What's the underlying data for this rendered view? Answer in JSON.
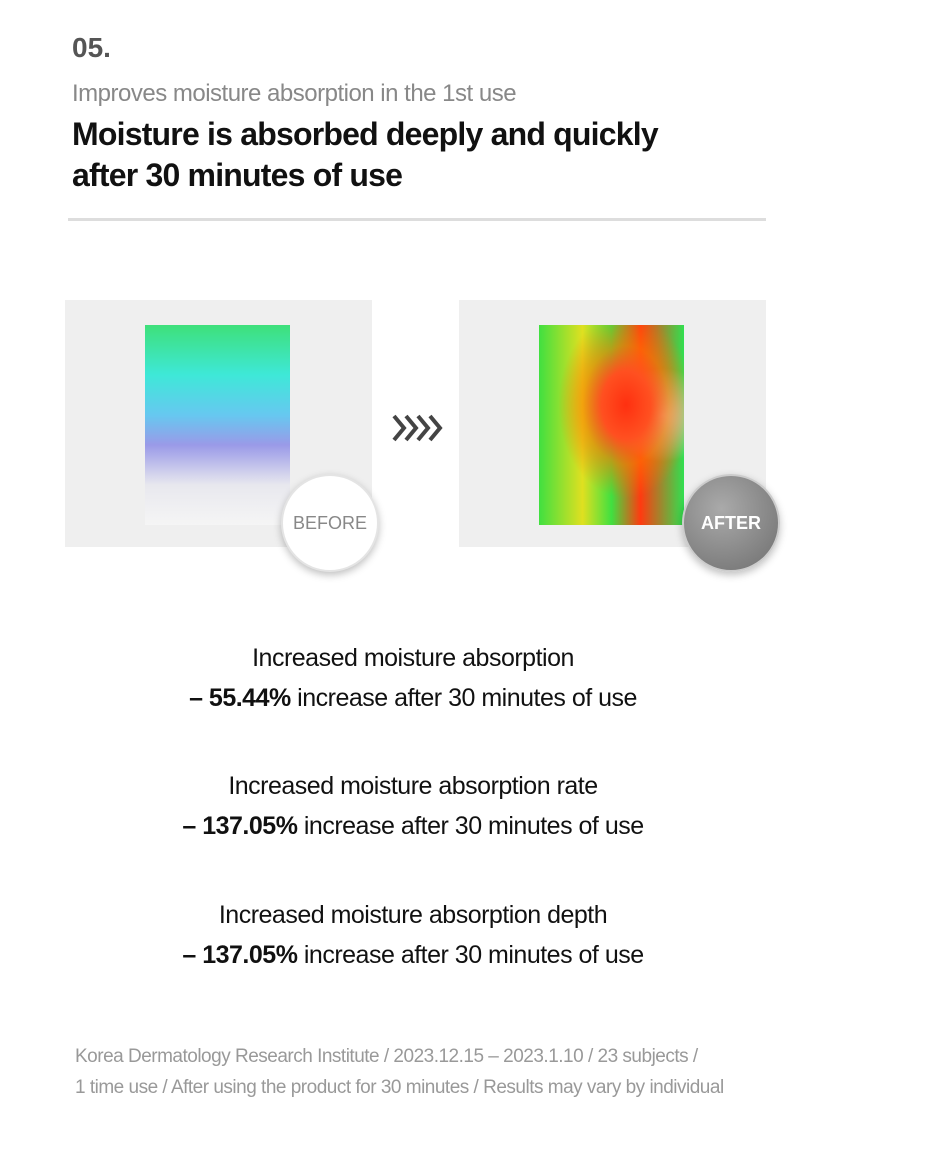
{
  "header": {
    "number": "05.",
    "subtitle": "Improves moisture absorption in the 1st use",
    "title_lines": [
      "Moisture is absorbed deeply and quickly",
      "after 30 minutes of use"
    ]
  },
  "images": {
    "before_label": "BEFORE",
    "after_label": "AFTER"
  },
  "results": [
    {
      "heading": "Increased moisture absorption",
      "highlight": "– 55.44%",
      "text": "increase after 30 minutes of use"
    },
    {
      "heading": "Increased moisture absorption rate",
      "highlight": "– 137.05%",
      "text": "increase after 30 minutes of use"
    },
    {
      "heading": "Increased moisture absorption depth",
      "highlight": "– 137.05%",
      "text": "increase after 30 minutes of use"
    }
  ],
  "footnote": [
    "Korea Dermatology Research Institute / 2023.12.15 – 2023.1.10 / 23 subjects /",
    "1 time use / After using the product for 30 minutes / Results may vary by individual"
  ]
}
